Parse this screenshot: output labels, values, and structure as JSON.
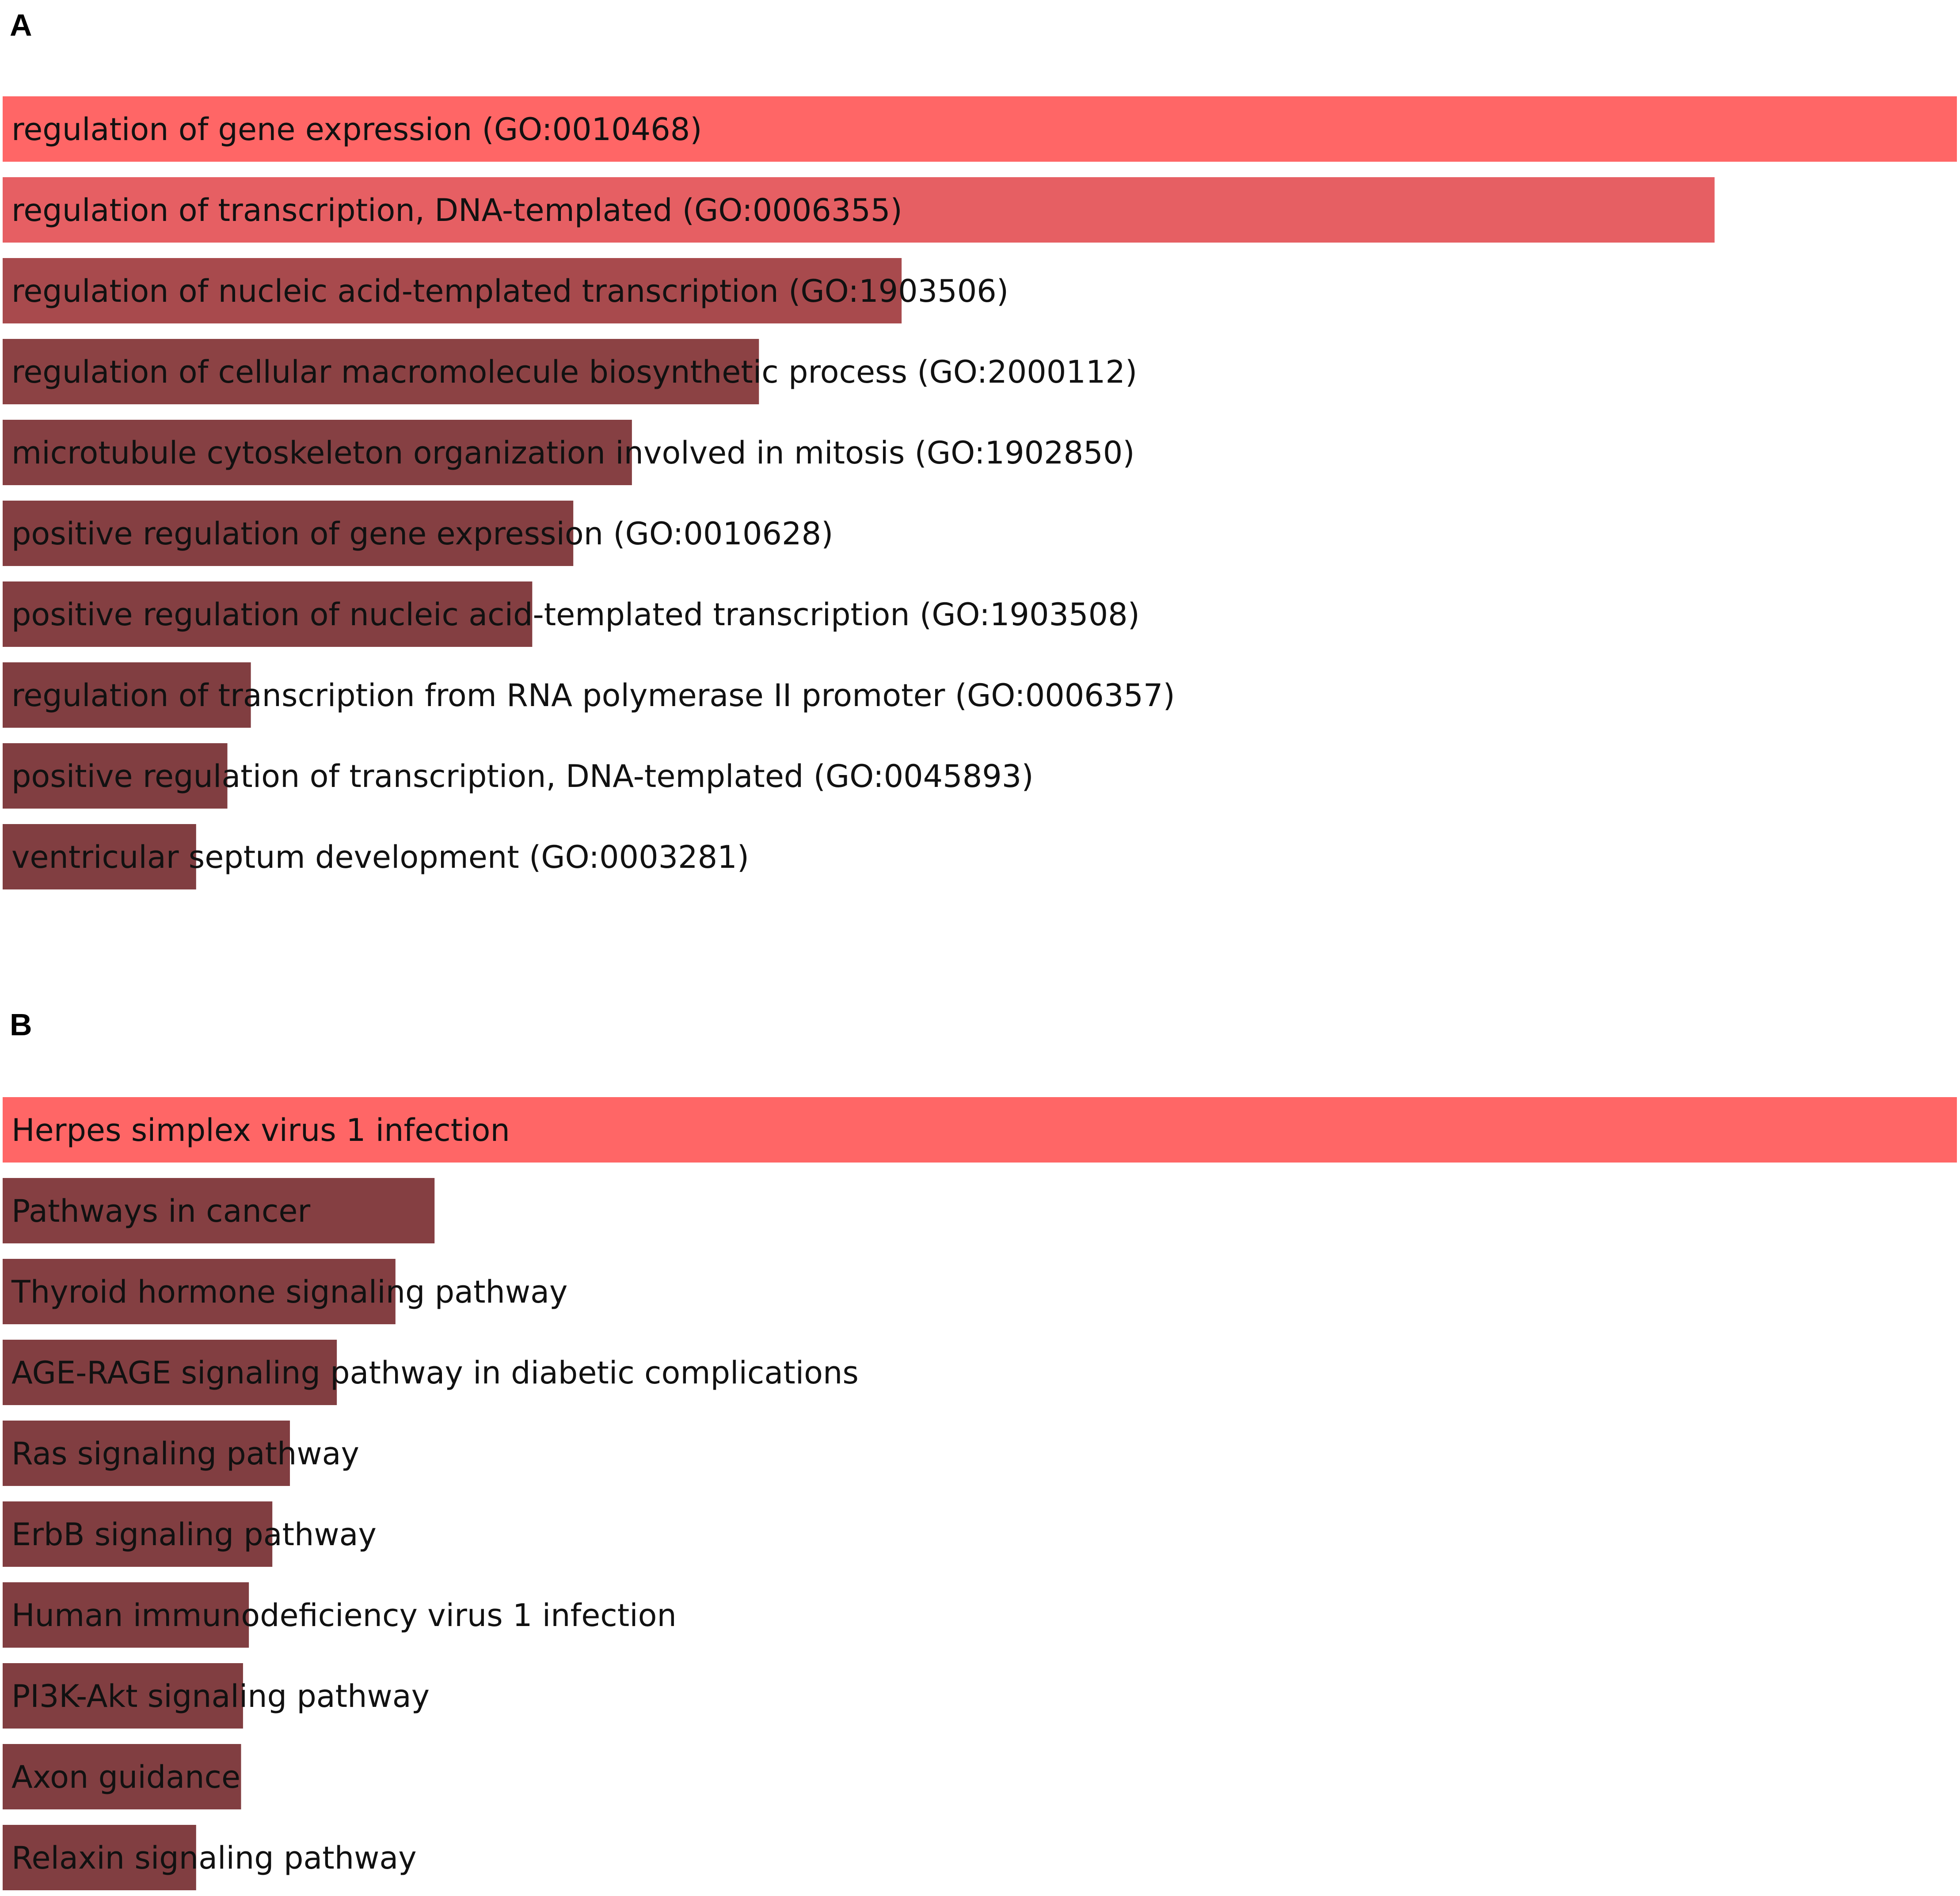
{
  "chart_data": [
    {
      "type": "bar",
      "panel_label": "A",
      "orientation": "horizontal",
      "categories": [
        "regulation of gene expression (GO:0010468)",
        "regulation of transcription, DNA-templated (GO:0006355)",
        "regulation of nucleic acid-templated transcription (GO:1903506)",
        "regulation of cellular macromolecule biosynthetic process (GO:2000112)",
        "microtubule cytoskeleton organization involved in mitosis (GO:1902850)",
        "positive regulation of gene expression (GO:0010628)",
        "positive regulation of nucleic acid-templated transcription (GO:1903508)",
        "regulation of transcription from RNA polymerase II promoter (GO:0006357)",
        "positive regulation of transcription, DNA-templated (GO:0045893)",
        "ventricular septum development (GO:0003281)"
      ],
      "values": [
        1.0,
        0.876,
        0.46,
        0.387,
        0.322,
        0.292,
        0.271,
        0.127,
        0.115,
        0.099
      ],
      "colors": [
        "#ff6666",
        "#e65f63",
        "#a84a4d",
        "#8c4244",
        "#864043",
        "#853f42",
        "#843f42",
        "#813e41",
        "#813e41",
        "#813e41"
      ],
      "xlim": [
        0,
        1
      ]
    },
    {
      "type": "bar",
      "panel_label": "B",
      "orientation": "horizontal",
      "categories": [
        "Herpes simplex virus 1 infection",
        "Pathways in cancer",
        "Thyroid hormone signaling pathway",
        "AGE-RAGE signaling pathway in diabetic complications",
        "Ras signaling pathway",
        "ErbB signaling pathway",
        "Human immunodeficiency virus 1 infection",
        "PI3K-Akt signaling pathway",
        "Axon guidance",
        "Relaxin signaling pathway"
      ],
      "values": [
        1.0,
        0.221,
        0.201,
        0.171,
        0.147,
        0.138,
        0.126,
        0.123,
        0.122,
        0.099
      ],
      "colors": [
        "#ff6666",
        "#853f42",
        "#843f42",
        "#823e41",
        "#813e41",
        "#813e41",
        "#813e41",
        "#813e41",
        "#813e41",
        "#813e41"
      ],
      "xlim": [
        0,
        1
      ]
    }
  ]
}
